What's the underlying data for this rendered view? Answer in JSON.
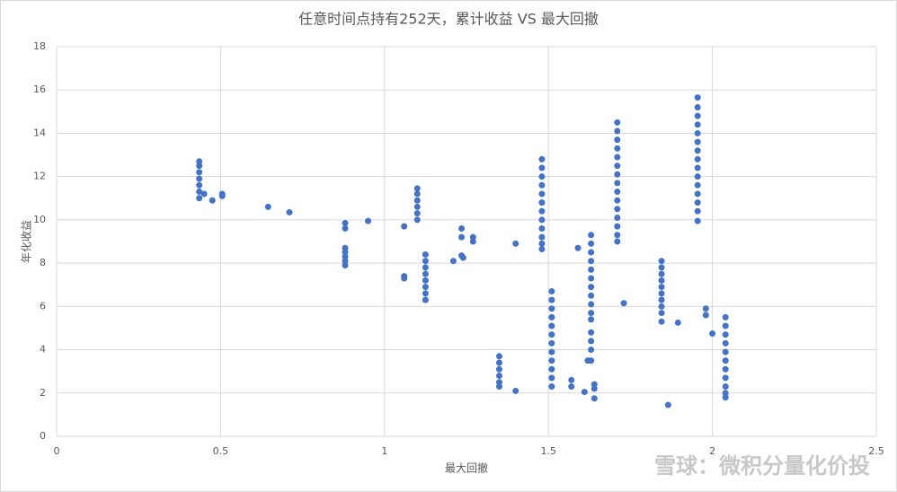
{
  "chart_data": {
    "type": "scatter",
    "title": "任意时间点持有252天，累计收益 VS 最大回撤",
    "x_label": "最大回撤",
    "y_label": "年化收益",
    "watermark": "雪球：微积分量化价投",
    "color": "#4472c4",
    "grid": true,
    "xlim": [
      0,
      2.5
    ],
    "xticks": [
      0,
      0.5,
      1,
      1.5,
      2,
      2.5
    ],
    "ylim": [
      0,
      18
    ],
    "yticks": [
      0,
      2,
      4,
      6,
      8,
      10,
      12,
      14,
      16,
      18
    ],
    "x": [
      0.435,
      0.435,
      0.435,
      0.435,
      0.435,
      0.435,
      0.435,
      0.45,
      0.475,
      0.505,
      0.505,
      0.645,
      0.71,
      0.88,
      0.88,
      0.88,
      0.88,
      0.88,
      0.88,
      0.88,
      0.95,
      1.06,
      1.06,
      1.06,
      1.1,
      1.1,
      1.1,
      1.1,
      1.1,
      1.1,
      1.125,
      1.125,
      1.125,
      1.125,
      1.125,
      1.125,
      1.125,
      1.125,
      1.21,
      1.235,
      1.235,
      1.235,
      1.24,
      1.27,
      1.27,
      1.35,
      1.35,
      1.35,
      1.35,
      1.35,
      1.35,
      1.4,
      1.4,
      1.48,
      1.48,
      1.48,
      1.48,
      1.48,
      1.48,
      1.48,
      1.48,
      1.48,
      1.48,
      1.48,
      1.48,
      1.51,
      1.51,
      1.51,
      1.51,
      1.51,
      1.51,
      1.51,
      1.51,
      1.51,
      1.51,
      1.51,
      1.51,
      1.57,
      1.57,
      1.59,
      1.61,
      1.62,
      1.63,
      1.63,
      1.63,
      1.63,
      1.63,
      1.63,
      1.63,
      1.63,
      1.63,
      1.63,
      1.63,
      1.63,
      1.63,
      1.63,
      1.63,
      1.64,
      1.64,
      1.64,
      1.71,
      1.71,
      1.71,
      1.71,
      1.71,
      1.71,
      1.71,
      1.71,
      1.71,
      1.71,
      1.71,
      1.71,
      1.71,
      1.71,
      1.71,
      1.73,
      1.845,
      1.845,
      1.845,
      1.845,
      1.845,
      1.845,
      1.845,
      1.845,
      1.845,
      1.845,
      1.865,
      1.895,
      1.955,
      1.955,
      1.955,
      1.955,
      1.955,
      1.955,
      1.955,
      1.955,
      1.955,
      1.955,
      1.955,
      1.955,
      1.955,
      1.955,
      1.955,
      1.98,
      1.98,
      2.0,
      2.04,
      2.04,
      2.04,
      2.04,
      2.04,
      2.04,
      2.04,
      2.04,
      2.04,
      2.04,
      2.04
    ],
    "values": [
      11.0,
      11.3,
      11.6,
      11.9,
      12.2,
      12.5,
      12.7,
      11.2,
      10.9,
      11.1,
      11.2,
      10.6,
      10.35,
      9.85,
      9.6,
      8.7,
      8.5,
      8.3,
      8.1,
      7.9,
      9.95,
      9.7,
      7.4,
      7.3,
      11.45,
      11.2,
      10.9,
      10.6,
      10.3,
      10.0,
      8.4,
      8.1,
      7.8,
      7.5,
      7.2,
      6.9,
      6.6,
      6.3,
      8.1,
      9.6,
      9.2,
      8.35,
      8.25,
      9.2,
      9.0,
      3.7,
      3.4,
      3.1,
      2.8,
      2.5,
      2.3,
      8.9,
      2.1,
      12.8,
      12.4,
      12.0,
      11.6,
      11.2,
      10.8,
      10.4,
      10.0,
      9.6,
      9.2,
      8.9,
      8.65,
      6.7,
      6.3,
      5.9,
      5.5,
      5.1,
      4.7,
      4.3,
      3.9,
      3.5,
      3.1,
      2.7,
      2.3,
      2.6,
      2.3,
      8.7,
      2.05,
      3.5,
      9.3,
      8.9,
      8.5,
      8.1,
      7.7,
      7.3,
      6.9,
      6.5,
      6.1,
      5.7,
      5.4,
      4.8,
      4.4,
      4.0,
      3.5,
      2.4,
      2.2,
      1.75,
      14.5,
      14.1,
      13.7,
      13.3,
      12.9,
      12.5,
      12.1,
      11.7,
      11.3,
      10.9,
      10.5,
      10.1,
      9.7,
      9.3,
      9.0,
      6.15,
      8.1,
      7.8,
      7.5,
      7.2,
      6.9,
      6.6,
      6.3,
      6.0,
      5.7,
      5.3,
      1.45,
      5.25,
      15.65,
      15.2,
      14.8,
      14.4,
      14.0,
      13.6,
      13.2,
      12.8,
      12.4,
      12.0,
      11.6,
      11.2,
      10.8,
      10.4,
      9.95,
      5.9,
      5.6,
      4.75,
      5.5,
      5.1,
      4.7,
      4.3,
      3.9,
      3.5,
      3.1,
      2.7,
      2.3,
      2.0,
      1.8
    ]
  }
}
